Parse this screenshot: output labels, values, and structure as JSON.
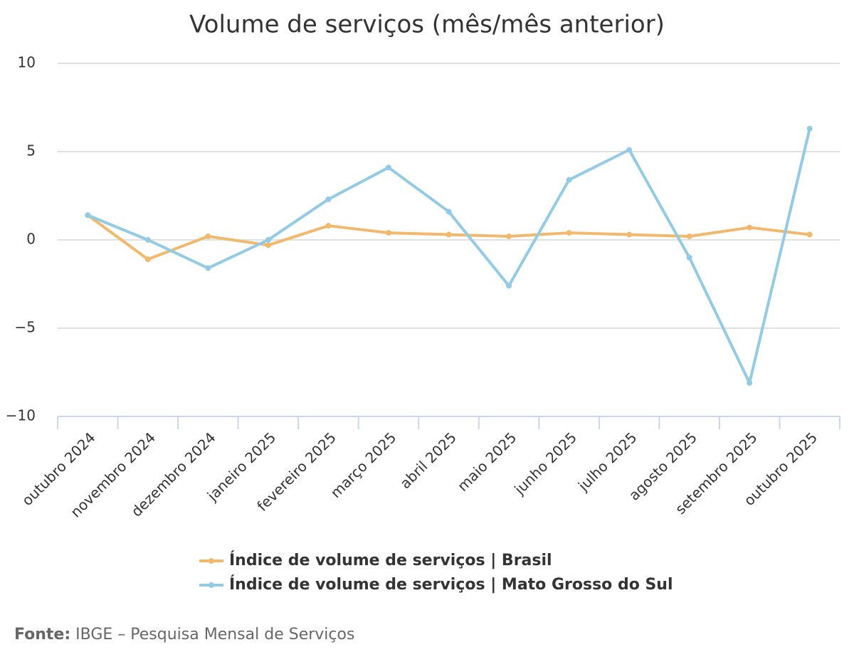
{
  "chart_data": {
    "type": "line",
    "title": "Volume de serviços (mês/mês anterior)",
    "categories": [
      "outubro 2024",
      "novembro 2024",
      "dezembro 2024",
      "janeiro 2025",
      "fevereiro 2025",
      "março 2025",
      "abril 2025",
      "maio 2025",
      "junho 2025",
      "julho 2025",
      "agosto 2025",
      "setembro 2025",
      "outubro 2025"
    ],
    "series": [
      {
        "name": "Índice de volume de serviços | Brasil",
        "color": "#f1b96e",
        "values": [
          1.4,
          -1.1,
          0.2,
          -0.3,
          0.8,
          0.4,
          0.3,
          0.2,
          0.4,
          0.3,
          0.2,
          0.7,
          0.3
        ]
      },
      {
        "name": "Índice de volume de serviços | Mato Grosso do Sul",
        "color": "#93cbe4",
        "values": [
          1.4,
          0.0,
          -1.6,
          0.0,
          2.3,
          4.1,
          1.6,
          -2.6,
          3.4,
          5.1,
          -1.0,
          -8.1,
          6.3
        ]
      }
    ],
    "ylim": [
      -10,
      10
    ],
    "yticks": [
      {
        "value": -10,
        "label": "−10"
      },
      {
        "value": -5,
        "label": "−5"
      },
      0,
      5,
      10
    ],
    "grid": true,
    "source_label": "Fonte:",
    "source_text": "IBGE – Pesquisa Mensal de Serviços"
  }
}
